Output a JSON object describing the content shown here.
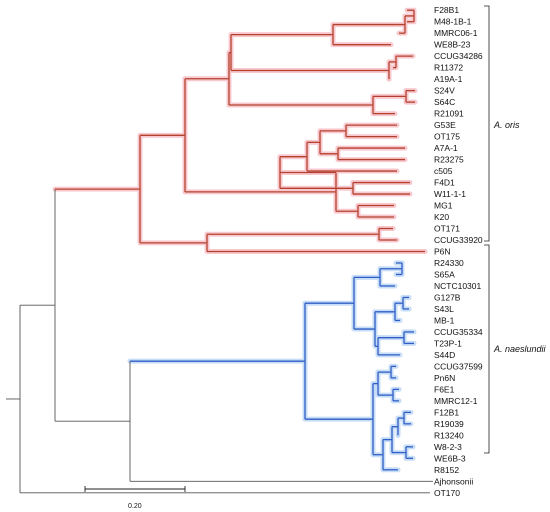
{
  "colors": {
    "oris_branch": "#b5402e",
    "oris_glow": "#f7c9cf",
    "naeslundii_branch": "#2f5ec6",
    "naeslundii_glow": "#c7dcf7",
    "other_branch": "#555555"
  },
  "scale_bar": {
    "label": "0.20"
  },
  "clades": [
    {
      "name": "A. oris",
      "color_key": "oris_branch"
    },
    {
      "name": "A. naeslundii",
      "color_key": "naeslundii_branch"
    }
  ],
  "taxa": {
    "oris": [
      "F28B1",
      "M48-1B-1",
      "MMRC06-1",
      "WE8B-23",
      "CCUG34286",
      "R11372",
      "A19A-1",
      "S24V",
      "S64C",
      "R21091",
      "G53E",
      "OT175",
      "A7A-1",
      "R23275",
      "c505",
      "F4D1",
      "W11-1-1",
      "MG1",
      "K20",
      "OT171",
      "CCUG33920",
      "P6N"
    ],
    "naeslundii": [
      "R24330",
      "S65A",
      "NCTC10301",
      "G127B",
      "S43L",
      "MB-1",
      "CCUG35334",
      "T23P-1",
      "S44D",
      "CCUG37599",
      "Pn6N",
      "F6E1",
      "MMRC12-1",
      "F12B1",
      "R19039",
      "R13240",
      "W8-2-3",
      "WE6B-3",
      "R8152"
    ],
    "outgroups": [
      "Ajhonsonii",
      "OT170"
    ]
  }
}
